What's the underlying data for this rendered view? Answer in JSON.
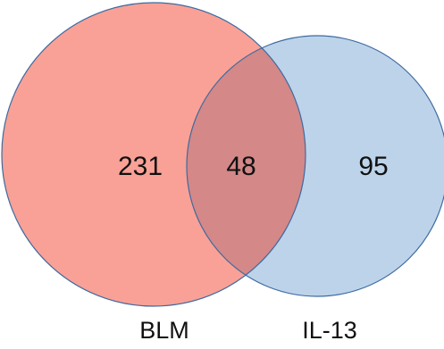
{
  "sets": [
    {
      "name": "BLM",
      "only_count": "231",
      "fill": "#f9a196",
      "stroke": "#3e6aa0"
    },
    {
      "name": "IL-13",
      "only_count": "95",
      "fill": "#bcd3ea",
      "stroke": "#3e6aa0"
    }
  ],
  "overlap": {
    "count": "48",
    "fill": "#d48888"
  }
}
